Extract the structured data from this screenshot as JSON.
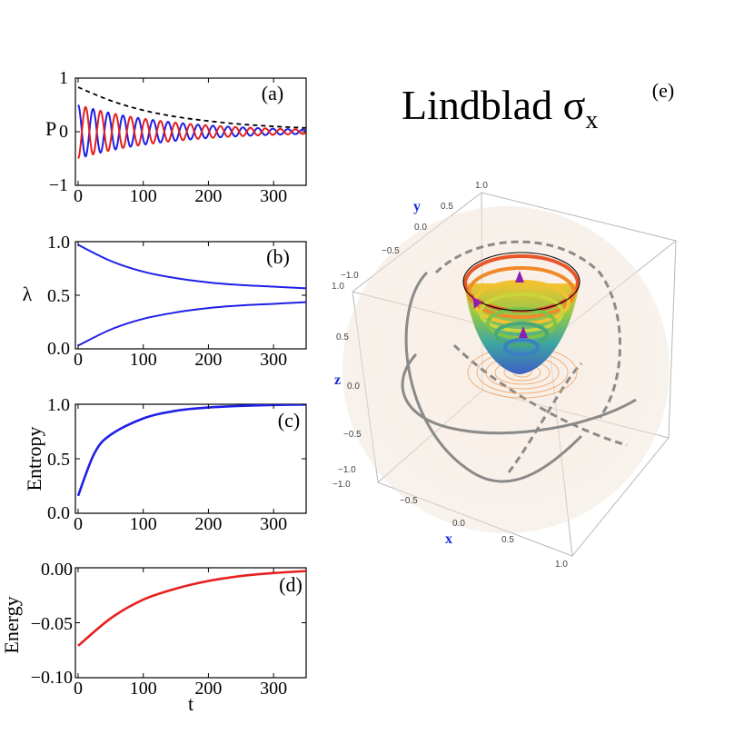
{
  "chart_data": [
    {
      "panel": "(a)",
      "type": "line",
      "ylabel": "P",
      "xlim": [
        0,
        350
      ],
      "ylim": [
        -1,
        1
      ],
      "xticks": [
        "0",
        "100",
        "200",
        "300"
      ],
      "yticks": [
        "−1",
        "0",
        "1"
      ],
      "series": [
        {
          "name": "envelope",
          "style": "dashed",
          "color": "#000000",
          "x": [
            0,
            50,
            100,
            150,
            200,
            250,
            300,
            350
          ],
          "y": [
            0.83,
            0.58,
            0.4,
            0.28,
            0.2,
            0.14,
            0.1,
            0.07
          ]
        },
        {
          "name": "blue",
          "color": "#1f1fe6",
          "amplitude_start": 0.5,
          "decay_rate": 0.0072,
          "period": 23,
          "phase": 0
        },
        {
          "name": "red",
          "color": "#e61f1f",
          "amplitude_start": 0.5,
          "decay_rate": 0.0072,
          "period": 23,
          "phase": 3.14
        }
      ]
    },
    {
      "panel": "(b)",
      "type": "line",
      "ylabel": "λ",
      "xlim": [
        0,
        350
      ],
      "ylim": [
        0,
        1
      ],
      "xticks": [
        "0",
        "100",
        "200",
        "300"
      ],
      "yticks": [
        "0.0",
        "0.5",
        "1.0"
      ],
      "series": [
        {
          "name": "upper",
          "color": "#1f1fe6",
          "x": [
            0,
            50,
            100,
            150,
            200,
            250,
            300,
            350
          ],
          "y": [
            0.97,
            0.82,
            0.72,
            0.66,
            0.62,
            0.595,
            0.58,
            0.565
          ]
        },
        {
          "name": "lower",
          "color": "#1f1fe6",
          "x": [
            0,
            50,
            100,
            150,
            200,
            250,
            300,
            350
          ],
          "y": [
            0.03,
            0.18,
            0.28,
            0.34,
            0.38,
            0.405,
            0.42,
            0.435
          ]
        }
      ]
    },
    {
      "panel": "(c)",
      "type": "line",
      "ylabel": "Entropy",
      "xlim": [
        0,
        350
      ],
      "ylim": [
        0,
        1
      ],
      "xticks": [
        "0",
        "100",
        "200",
        "300"
      ],
      "yticks": [
        "0.0",
        "0.5",
        "1.0"
      ],
      "series": [
        {
          "name": "entropy",
          "color": "#1f1fe6",
          "x": [
            0,
            25,
            50,
            100,
            150,
            200,
            250,
            300,
            350
          ],
          "y": [
            0.16,
            0.55,
            0.72,
            0.87,
            0.94,
            0.97,
            0.985,
            0.993,
            0.997
          ]
        }
      ]
    },
    {
      "panel": "(d)",
      "type": "line",
      "ylabel": "Energy",
      "xlabel": "t",
      "xlim": [
        0,
        350
      ],
      "ylim": [
        -0.1,
        0
      ],
      "xticks": [
        "0",
        "100",
        "200",
        "300"
      ],
      "yticks": [
        "−0.10",
        "−0.05",
        "0.00"
      ],
      "series": [
        {
          "name": "energy",
          "color": "#e61f1f",
          "x": [
            0,
            50,
            100,
            150,
            200,
            250,
            300,
            350
          ],
          "y": [
            -0.071,
            -0.046,
            -0.029,
            -0.019,
            -0.012,
            -0.0075,
            -0.0048,
            -0.003
          ]
        }
      ]
    },
    {
      "panel": "(e)",
      "type": "3d-bloch",
      "title": "Lindblad σ",
      "title_sub": "x",
      "x_label": "x",
      "y_label": "y",
      "z_label": "z",
      "x_ticks": [
        "−1.0",
        "−0.5",
        "0.0",
        "0.5",
        "1.0"
      ],
      "y_ticks": [
        "1.0",
        "0.5",
        "0.0",
        "−0.5",
        "−1.0"
      ],
      "z_ticks": [
        "1.0",
        "0.5",
        "0.0",
        "−0.5",
        "−1.0"
      ],
      "ring_colors": [
        "#e8562a",
        "#f08a2a",
        "#f2c230",
        "#c9d53a",
        "#7fc24a",
        "#4aa77a",
        "#3b7fc4"
      ]
    }
  ]
}
